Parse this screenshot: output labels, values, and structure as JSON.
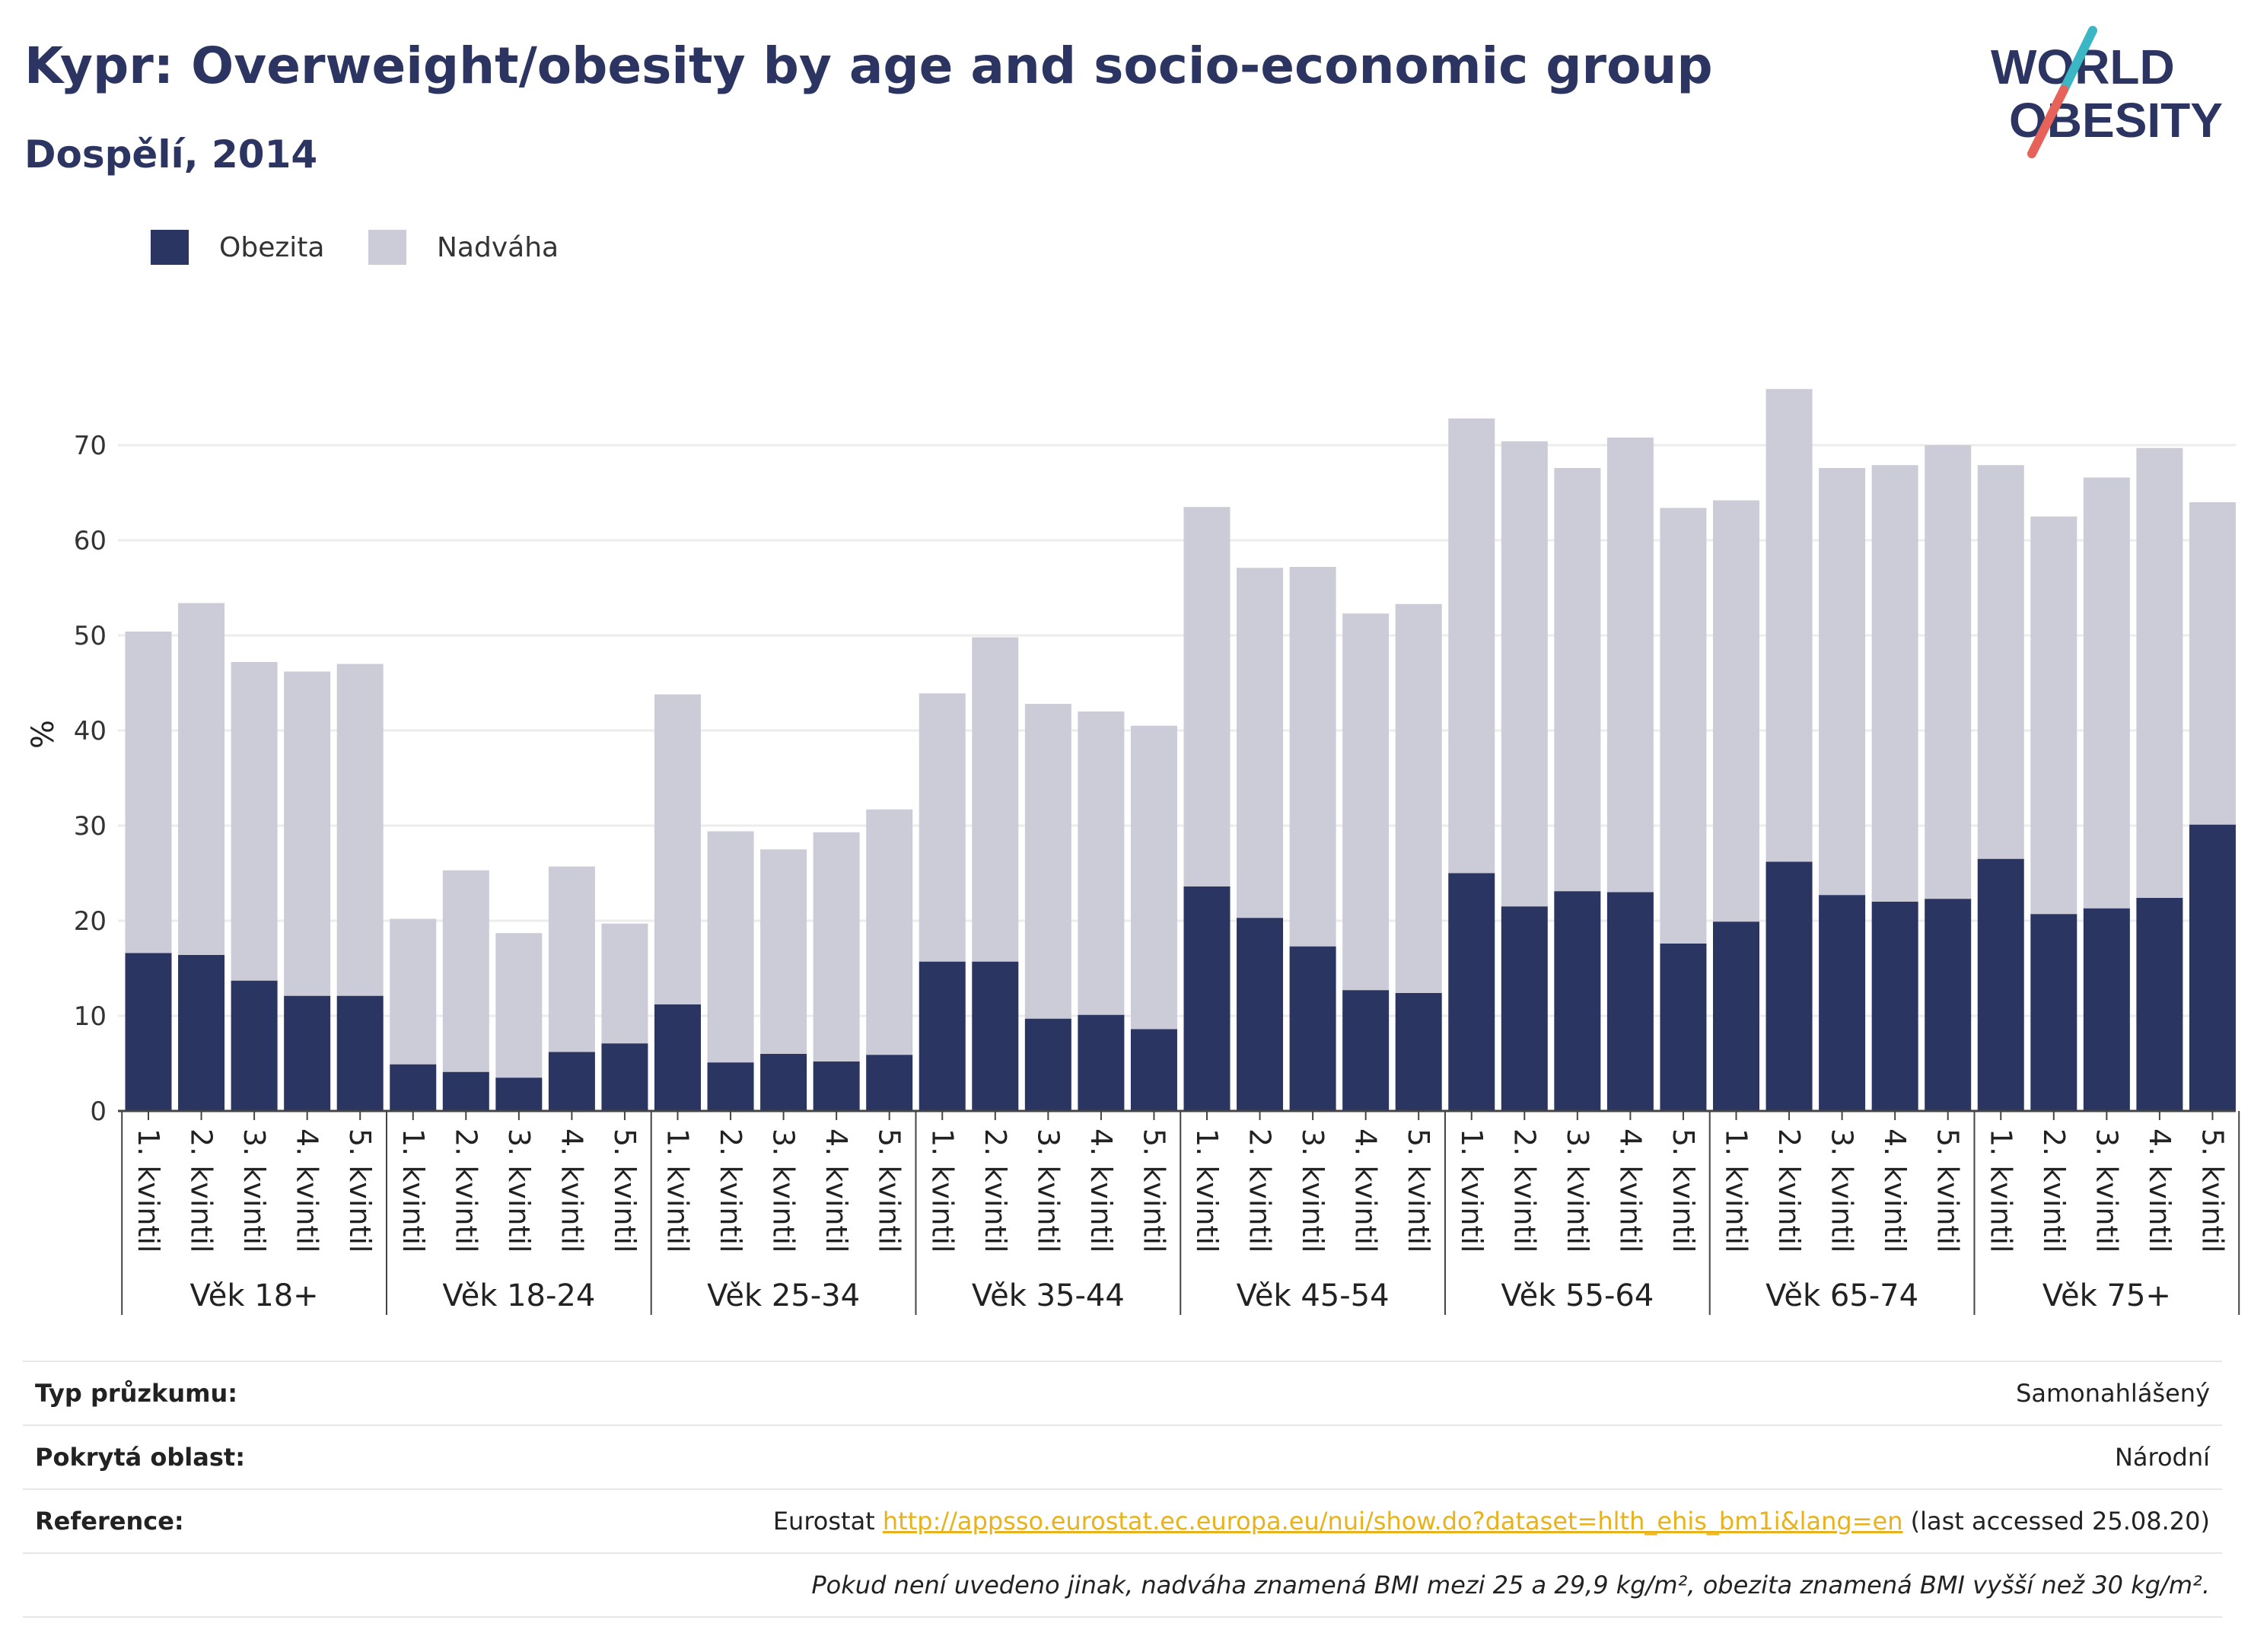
{
  "header": {
    "title": "Kypr: Overweight/obesity by age and socio-economic group",
    "subtitle": "Dospělí, 2014"
  },
  "logo": {
    "line1": "WORLD",
    "line2": "OBESITY"
  },
  "colors": {
    "obesity": "#2b3562",
    "overweight": "#cbccd8",
    "accent_teal": "#3bb6c4",
    "accent_red": "#e7635a",
    "link": "#e7b21c"
  },
  "legend": [
    {
      "label": "Obezita",
      "color": "#2b3562"
    },
    {
      "label": "Nadváha",
      "color": "#cbccd8"
    }
  ],
  "chart_data": {
    "type": "bar",
    "stacked": true,
    "ylabel": "%",
    "ylim": [
      0,
      80
    ],
    "yticks": [
      0,
      10,
      20,
      30,
      40,
      50,
      60,
      70
    ],
    "grid": true,
    "legend_position": "top-left",
    "groups": [
      "Věk 18+",
      "Věk 18-24",
      "Věk 25-34",
      "Věk 35-44",
      "Věk 45-54",
      "Věk 55-64",
      "Věk 65-74",
      "Věk 75+"
    ],
    "categories": [
      "1. kvintil",
      "2. kvintil",
      "3. kvintil",
      "4. kvintil",
      "5. kvintil"
    ],
    "series": [
      {
        "name": "Obezita",
        "values": [
          [
            16.6,
            16.4,
            13.7,
            12.1,
            12.1
          ],
          [
            4.9,
            4.1,
            3.5,
            6.2,
            7.1
          ],
          [
            11.2,
            5.1,
            6.0,
            5.2,
            5.9
          ],
          [
            15.7,
            15.7,
            9.7,
            10.1,
            8.6
          ],
          [
            23.6,
            20.3,
            17.3,
            12.7,
            12.4
          ],
          [
            25.0,
            21.5,
            23.1,
            23.0,
            17.6
          ],
          [
            19.9,
            26.2,
            22.7,
            22.0,
            22.3
          ],
          [
            26.5,
            20.7,
            21.3,
            22.4,
            30.1
          ]
        ]
      },
      {
        "name": "Nadváha",
        "values": [
          [
            33.8,
            37.0,
            33.5,
            34.1,
            34.9
          ],
          [
            15.3,
            21.2,
            15.2,
            19.5,
            12.6
          ],
          [
            32.6,
            24.3,
            21.5,
            24.1,
            25.8
          ],
          [
            28.2,
            34.1,
            33.1,
            31.9,
            31.9
          ],
          [
            39.9,
            36.8,
            39.9,
            39.6,
            40.9
          ],
          [
            47.8,
            48.9,
            44.5,
            47.8,
            45.8
          ],
          [
            44.3,
            49.7,
            44.9,
            45.9,
            47.7
          ],
          [
            41.4,
            41.8,
            45.3,
            47.3,
            33.9
          ]
        ]
      }
    ]
  },
  "info_table": {
    "rows": [
      {
        "label": "Typ průzkumu:",
        "value": "Samonahlášený"
      },
      {
        "label": "Pokrytá oblast:",
        "value": "Národní"
      }
    ],
    "reference": {
      "label": "Reference:",
      "prefix": "Eurostat ",
      "link": "http://appsso.eurostat.ec.europa.eu/nui/show.do?dataset=hlth_ehis_bm1i&lang=en",
      "suffix": " (last accessed 25.08.20)"
    },
    "note": "Pokud není uvedeno jinak, nadváha znamená BMI mezi 25 a 29,9 kg/m², obezita znamená BMI vyšší než 30 kg/m²."
  }
}
